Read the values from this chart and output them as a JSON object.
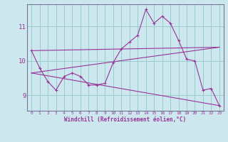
{
  "xlabel": "Windchill (Refroidissement éolien,°C)",
  "bg_color": "#cce8ee",
  "line_color": "#993399",
  "grid_color": "#99cccc",
  "xlim": [
    -0.5,
    23.5
  ],
  "ylim": [
    8.55,
    11.65
  ],
  "yticks": [
    9,
    10,
    11
  ],
  "xticks": [
    0,
    1,
    2,
    3,
    4,
    5,
    6,
    7,
    8,
    9,
    10,
    11,
    12,
    13,
    14,
    15,
    16,
    17,
    18,
    19,
    20,
    21,
    22,
    23
  ],
  "series1_x": [
    0,
    1,
    2,
    3,
    4,
    5,
    6,
    7,
    8,
    9,
    10,
    11,
    12,
    13,
    14,
    15,
    16,
    17,
    18,
    19,
    20,
    21,
    22,
    23
  ],
  "series1_y": [
    10.3,
    9.8,
    9.4,
    9.15,
    9.55,
    9.65,
    9.55,
    9.3,
    9.3,
    9.35,
    9.95,
    10.35,
    10.55,
    10.75,
    11.5,
    11.1,
    11.3,
    11.1,
    10.6,
    10.05,
    10.0,
    9.15,
    9.2,
    8.7
  ],
  "series2_x": [
    0,
    23
  ],
  "series2_y": [
    9.65,
    10.4
  ],
  "series3_x": [
    0,
    23
  ],
  "series3_y": [
    10.3,
    10.4
  ],
  "series4_x": [
    0,
    23
  ],
  "series4_y": [
    9.65,
    8.7
  ],
  "marker": "+"
}
